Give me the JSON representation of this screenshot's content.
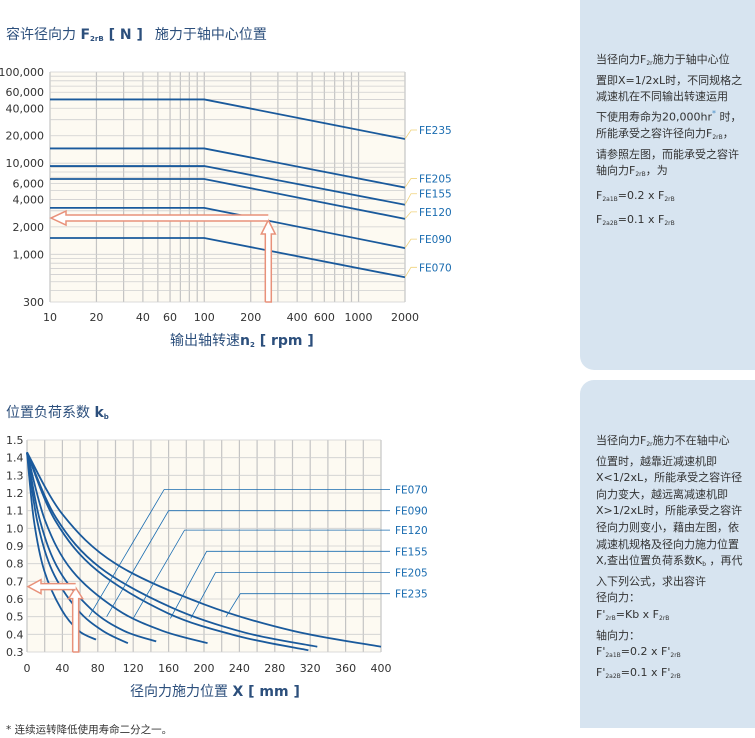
{
  "chart_data": [
    {
      "type": "line",
      "title": "容许径向力 F2rB [ N ]  施力于轴中心位置",
      "title_parts": {
        "main": "容许径向力 ",
        "symbol": "F",
        "symbol_sub": "2rB",
        "unit": " [ N ]",
        "note": "施力于轴中心位置"
      },
      "xlabel_parts": {
        "main": "输出轴转速",
        "symbol": "n",
        "symbol_sub": "2",
        "unit": " [ rpm ]"
      },
      "xlabel": "输出轴转速n2 [ rpm ]",
      "x_scale": "log",
      "y_scale": "log",
      "xlim": [
        10,
        2000
      ],
      "ylim": [
        300,
        100000
      ],
      "x_ticks": [
        "10",
        "20",
        "40",
        "60",
        "100",
        "200",
        "400",
        "600",
        "1000",
        "2000"
      ],
      "x_tick_values": [
        10,
        20,
        40,
        60,
        100,
        200,
        400,
        600,
        1000,
        2000
      ],
      "y_ticks": [
        "100,000",
        "60,000",
        "40,000",
        "20,000",
        "10,000",
        "6,000",
        "4,000",
        "2,000",
        "1,000",
        "300"
      ],
      "y_tick_values": [
        100000,
        60000,
        40000,
        20000,
        10000,
        6000,
        4000,
        2000,
        1000,
        300
      ],
      "grid": true,
      "series": [
        {
          "name": "FE235",
          "x": [
            10,
            100,
            2000
          ],
          "y": [
            50000,
            50000,
            18400
          ]
        },
        {
          "name": "FE205",
          "x": [
            10,
            100,
            2000
          ],
          "y": [
            14500,
            14500,
            5400
          ]
        },
        {
          "name": "FE155",
          "x": [
            10,
            100,
            2000
          ],
          "y": [
            9300,
            9300,
            3500
          ]
        },
        {
          "name": "FE120",
          "x": [
            10,
            100,
            2000
          ],
          "y": [
            6700,
            6700,
            2450
          ]
        },
        {
          "name": "FE090",
          "x": [
            10,
            100,
            2000
          ],
          "y": [
            3230,
            3230,
            1170
          ]
        },
        {
          "name": "FE070",
          "x": [
            10,
            100,
            2000
          ],
          "y": [
            1510,
            1510,
            560
          ]
        }
      ],
      "annotation_arrow": {
        "x": 260,
        "y": 2500
      },
      "line_color": "#1a5a9c",
      "arrow_color": "#e8917a"
    },
    {
      "type": "line",
      "title": "位置负荷系数 kb",
      "title_parts": {
        "main": "位置负荷系数 ",
        "symbol": "k",
        "symbol_sub": "b"
      },
      "xlabel_parts": {
        "main": "径向力施力位置 ",
        "symbol": "X",
        "unit": " [ mm ]"
      },
      "xlabel": "径向力施力位置 X [ mm ]",
      "xlim": [
        0,
        400
      ],
      "ylim": [
        0.3,
        1.5
      ],
      "x_ticks": [
        "0",
        "40",
        "80",
        "120",
        "160",
        "200",
        "240",
        "280",
        "320",
        "360",
        "400"
      ],
      "y_ticks": [
        "1.5",
        "1.4",
        "1.3",
        "1.2",
        "1.1",
        "1.0",
        "0.9",
        "0.8",
        "0.7",
        "0.6",
        "0.5",
        "0.4",
        "0.3"
      ],
      "grid": true,
      "labels": [
        {
          "name": "FE070",
          "leader_from": [
            155,
            1.22
          ],
          "leader_to": [
            70,
            0.5
          ]
        },
        {
          "name": "FE090",
          "leader_from": [
            160,
            1.1
          ],
          "leader_to": [
            90,
            0.5
          ]
        },
        {
          "name": "FE120",
          "leader_from": [
            178,
            0.99
          ],
          "leader_to": [
            120,
            0.49
          ]
        },
        {
          "name": "FE155",
          "leader_from": [
            203,
            0.87
          ],
          "leader_to": [
            162,
            0.49
          ]
        },
        {
          "name": "FE205",
          "leader_from": [
            213,
            0.75
          ],
          "leader_to": [
            185,
            0.49
          ]
        },
        {
          "name": "FE235",
          "leader_from": [
            241,
            0.63
          ],
          "leader_to": [
            225,
            0.5
          ]
        }
      ],
      "curves": [
        {
          "x": [
            0,
            7.8,
            19.5,
            39,
            58.5,
            78
          ],
          "y": [
            1.43,
            1.045,
            0.76,
            0.54,
            0.42,
            0.37
          ]
        },
        {
          "x": [
            0,
            11.4,
            28.5,
            57,
            85.5,
            114
          ],
          "y": [
            1.43,
            1.045,
            0.76,
            0.54,
            0.42,
            0.35
          ]
        },
        {
          "x": [
            0,
            14.6,
            36.5,
            73,
            109.5,
            146
          ],
          "y": [
            1.43,
            1.045,
            0.76,
            0.54,
            0.42,
            0.36
          ]
        },
        {
          "x": [
            0,
            20.4,
            51,
            102,
            153,
            204
          ],
          "y": [
            1.43,
            1.045,
            0.76,
            0.54,
            0.42,
            0.35
          ]
        },
        {
          "x": [
            0,
            31.8,
            79.5,
            159,
            238.5,
            318
          ],
          "y": [
            1.43,
            1.045,
            0.76,
            0.52,
            0.39,
            0.31
          ]
        },
        {
          "x": [
            0,
            32.8,
            82,
            164,
            246,
            328
          ],
          "y": [
            1.43,
            1.06,
            0.78,
            0.55,
            0.41,
            0.33
          ]
        },
        {
          "x": [
            0,
            40,
            100,
            200,
            300,
            400
          ],
          "y": [
            1.43,
            1.08,
            0.8,
            0.57,
            0.42,
            0.33
          ]
        }
      ],
      "annotation_arrow": {
        "x": 55,
        "y": 0.67
      },
      "line_color": "#1a5a9c",
      "arrow_color": "#e8917a"
    }
  ],
  "panel_top": {
    "lines": [
      [
        "当径向力F",
        {
          "sub": "2r"
        },
        "施力于轴中心位"
      ],
      [
        "置即X=1/2xL时，不同规格之"
      ],
      [
        "减速机在不同输出转速运用"
      ],
      [
        "下使用寿命为20,000hr",
        {
          "sup": "*"
        },
        " 时，"
      ],
      [
        "所能承受之容许径向力F",
        {
          "sub": "2rB"
        },
        "，"
      ],
      [
        "请参照左图，而能承受之容许"
      ],
      [
        "轴向力F",
        {
          "sub": "2rB"
        },
        "，为"
      ],
      [
        "F",
        {
          "sub": "2a1B"
        },
        "=0.2 x F",
        {
          "sub": "2rB"
        }
      ],
      [
        "F",
        {
          "sub": "2a2B"
        },
        "=0.1 x F",
        {
          "sub": "2rB"
        }
      ]
    ]
  },
  "panel_bottom": {
    "lines": [
      [
        "当径向力F",
        {
          "sub": "2r"
        },
        "施力不在轴中心"
      ],
      [
        "位置时，越靠近减速机即"
      ],
      [
        "X<1/2xL，所能承受之容许径"
      ],
      [
        "向力变大，越远离减速机即"
      ],
      [
        "X>1/2xL时，所能承受之容许"
      ],
      [
        "径向力则变小，藉由左图，依"
      ],
      [
        "减速机规格及径向力施力位置"
      ],
      [
        "X,查出位置负荷系数K",
        {
          "sub": "b"
        },
        " ，再代"
      ],
      [
        "入下列公式，求出容许"
      ],
      [
        "径向力："
      ],
      [
        "F'",
        {
          "sub": "2rB"
        },
        "=Kb x F",
        {
          "sub": "2rB"
        }
      ],
      [
        "轴向力："
      ],
      [
        "F'",
        {
          "sub": "2a1B"
        },
        "=0.2 x F'",
        {
          "sub": "2rB"
        }
      ],
      [
        "F'",
        {
          "sub": "2a2B"
        },
        "=0.1 x F'",
        {
          "sub": "2rB"
        }
      ]
    ]
  },
  "footnote": "* 连续运转降低使用寿命二分之一。"
}
